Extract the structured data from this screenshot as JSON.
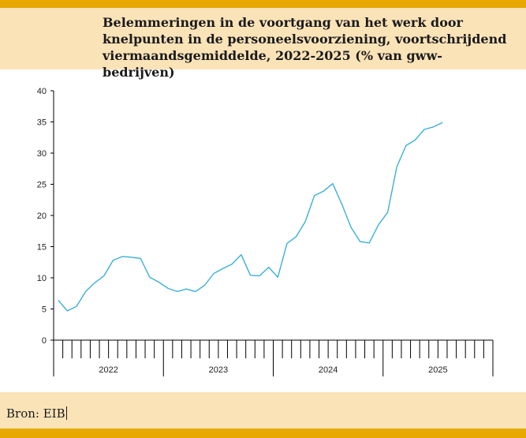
{
  "header": {
    "title": "Belemmeringen in de voortgang van het werk door\nknelpunten in de personeelsvoorziening, voortschrijdend\nviermaandsgemiddelde, 2022-2025 (% van gww-bedrijven)"
  },
  "footer": {
    "source": "Bron: EIB"
  },
  "colors": {
    "line": "#3bb0d8",
    "band": "#fbe3b8",
    "bar": "#e8a800"
  },
  "chart_data": {
    "type": "line",
    "title": "Belemmeringen in de voortgang van het werk door knelpunten in de personeelsvoorziening, voortschrijdend viermaandsgemiddelde, 2022-2025 (% van gww-bedrijven)",
    "xlabel": "",
    "ylabel": "",
    "ylim": [
      0,
      40
    ],
    "yticks": [
      "0",
      "5",
      "10",
      "15",
      "20",
      "25",
      "30",
      "35",
      "40"
    ],
    "years": [
      "2022",
      "2023",
      "2024",
      "2025"
    ],
    "months_per_year": 12,
    "series": [
      {
        "name": "% van gww-bedrijven",
        "values": [
          6.4,
          4.7,
          5.4,
          7.8,
          9.2,
          10.3,
          12.8,
          13.4,
          13.3,
          13.1,
          10.1,
          9.3,
          8.3,
          7.8,
          8.2,
          7.8,
          8.8,
          10.7,
          11.5,
          12.2,
          13.7,
          10.4,
          10.3,
          11.7,
          10.1,
          15.5,
          16.6,
          19.0,
          23.2,
          23.9,
          25.1,
          21.8,
          18.1,
          15.8,
          15.6,
          18.5,
          20.5,
          27.8,
          31.2,
          32.1,
          33.8,
          34.2,
          34.9
        ]
      }
    ]
  }
}
